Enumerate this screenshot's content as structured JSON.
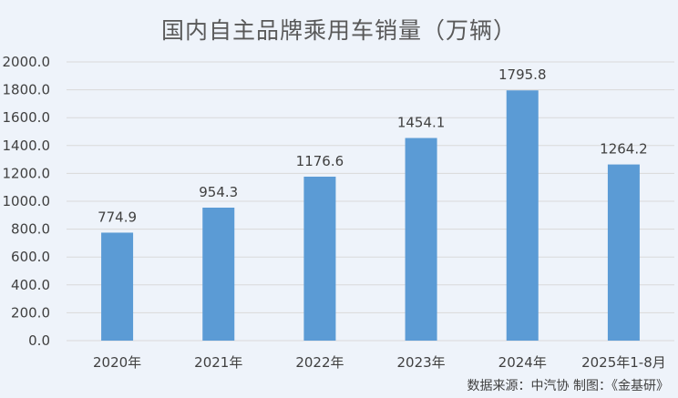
{
  "chart_data": {
    "type": "bar",
    "title": "国内自主品牌乘用车销量（万辆）",
    "categories": [
      "2020年",
      "2021年",
      "2022年",
      "2023年",
      "2024年",
      "2025年1-8月"
    ],
    "values": [
      774.9,
      954.3,
      1176.6,
      1454.1,
      1795.8,
      1264.2
    ],
    "value_labels": [
      "774.9",
      "954.3",
      "1176.6",
      "1454.1",
      "1795.8",
      "1264.2"
    ],
    "ylim": [
      0,
      2000
    ],
    "yticks": [
      "0.0",
      "200.0",
      "400.0",
      "600.0",
      "800.0",
      "1000.0",
      "1200.0",
      "1400.0",
      "1600.0",
      "1800.0",
      "2000.0"
    ],
    "xlabel": "",
    "ylabel": "",
    "grid": true,
    "legend": "none",
    "bar_color": "#5b9bd5",
    "grid_color": "#d9d9d9",
    "source_note": "数据来源：中汽协  制图：《金基研》"
  }
}
